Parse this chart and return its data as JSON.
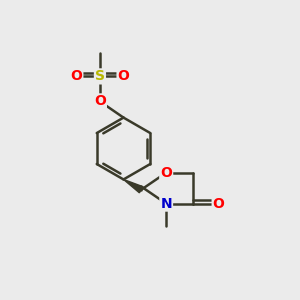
{
  "bg_color": "#ebebeb",
  "bond_color": "#3a3a2a",
  "bond_lw": 1.8,
  "atom_colors": {
    "O": "#ff0000",
    "S": "#b8b800",
    "N": "#0000cc",
    "C": "#3a3a2a"
  },
  "font_size_atom": 10,
  "bond_color_dark": "#3a3a2a"
}
